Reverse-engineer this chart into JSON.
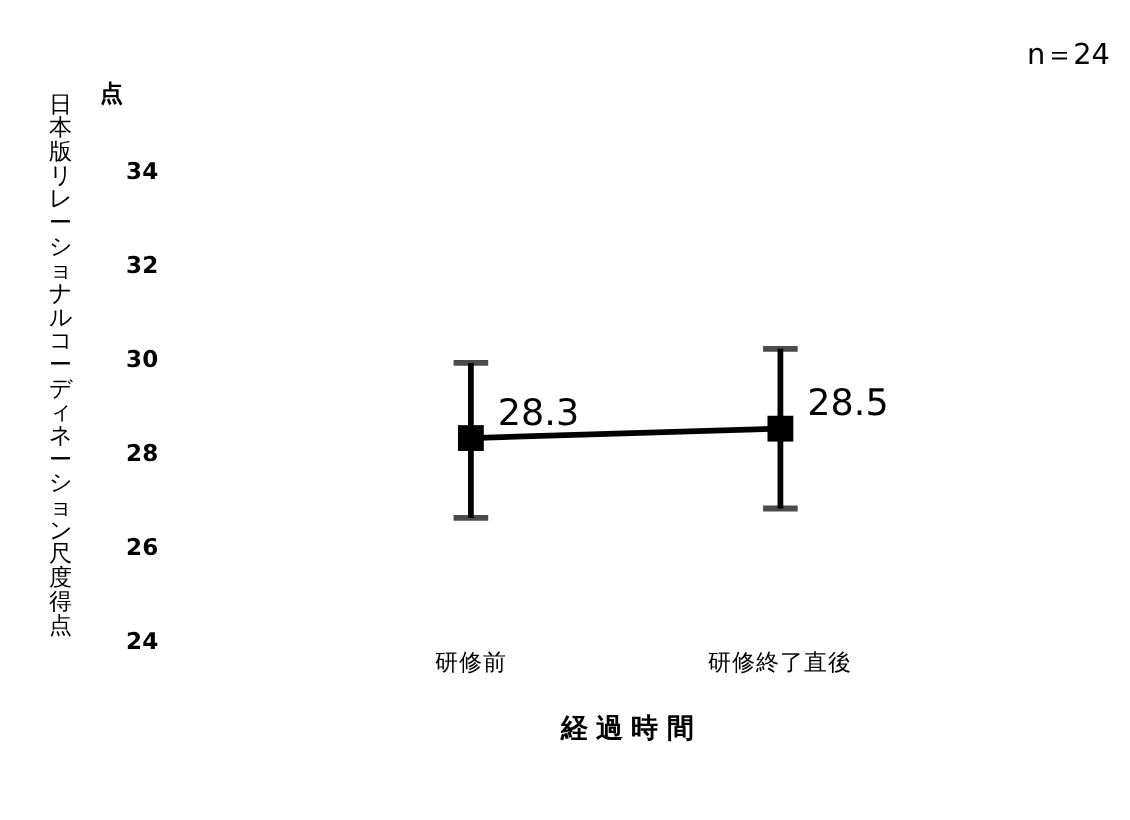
{
  "chart_data": {
    "type": "line",
    "ylabel": "日本版リレーショナルコーディネーション尺度得点",
    "xlabel": "経 過 時 間",
    "annotations": [
      "n＝24",
      "点"
    ],
    "categories": [
      "研修前",
      "研修終了直後"
    ],
    "series": [
      {
        "color": "#000000",
        "values": [
          28.3,
          28.5
        ],
        "errors": [
          [
            26.6,
            29.9
          ],
          [
            26.8,
            30.2
          ]
        ]
      }
    ],
    "data_labels": true,
    "marker": "square",
    "ylim": [
      24,
      34
    ],
    "yticks": [
      24,
      26,
      28,
      30,
      32,
      34
    ],
    "grid": false
  }
}
